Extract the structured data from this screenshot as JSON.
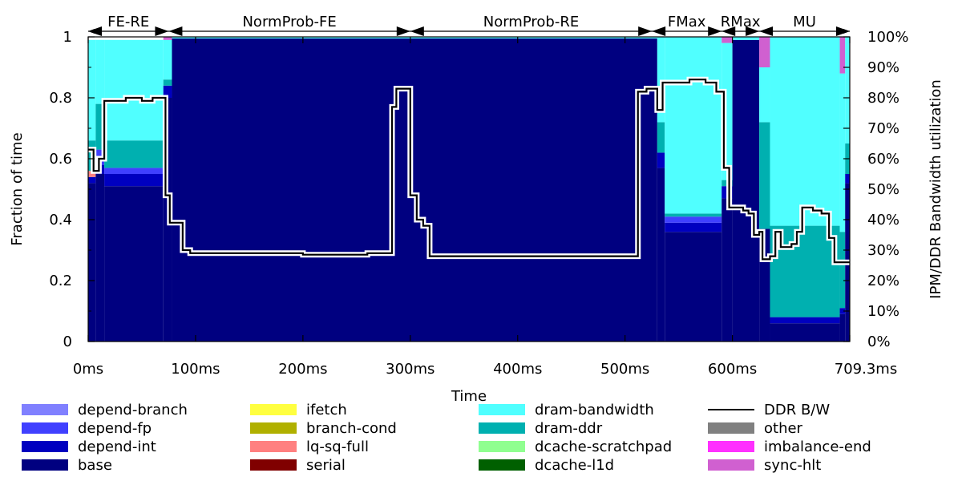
{
  "chart_data": {
    "type": "area",
    "xlabel": "Time",
    "ylabel": "Fraction of time",
    "y2label": "IPM/DDR Bandwidth utilization",
    "x_ticks": [
      "0ms",
      "100ms",
      "200ms",
      "300ms",
      "400ms",
      "500ms",
      "600ms",
      "709.3ms"
    ],
    "x_tick_values": [
      0,
      100,
      200,
      300,
      400,
      500,
      600,
      709.3
    ],
    "xlim": [
      0,
      709.3
    ],
    "y_ticks": [
      "0",
      "0.2",
      "0.4",
      "0.6",
      "0.8",
      "1"
    ],
    "y2_ticks": [
      "0%",
      "10%",
      "20%",
      "30%",
      "40%",
      "50%",
      "60%",
      "70%",
      "80%",
      "90%",
      "100%"
    ],
    "ylim": [
      0,
      1
    ],
    "phases": [
      {
        "label": "FE-RE",
        "start": 0,
        "end": 75
      },
      {
        "label": "NormProb-FE",
        "start": 75,
        "end": 300
      },
      {
        "label": "NormProb-RE",
        "start": 300,
        "end": 525
      },
      {
        "label": "FMax",
        "start": 525,
        "end": 590
      },
      {
        "label": "RMax",
        "start": 590,
        "end": 625
      },
      {
        "label": "MU",
        "start": 625,
        "end": 709.3
      }
    ],
    "series": [
      {
        "name": "depend-branch",
        "color": "#8080ff"
      },
      {
        "name": "depend-fp",
        "color": "#4040ff"
      },
      {
        "name": "depend-int",
        "color": "#0000c0"
      },
      {
        "name": "base",
        "color": "#000080"
      },
      {
        "name": "ifetch",
        "color": "#ffff40"
      },
      {
        "name": "branch-cond",
        "color": "#b0b000"
      },
      {
        "name": "lq-sq-full",
        "color": "#ff8080"
      },
      {
        "name": "serial",
        "color": "#800000"
      },
      {
        "name": "dram-bandwidth",
        "color": "#50ffff"
      },
      {
        "name": "dram-ddr",
        "color": "#00b0b0"
      },
      {
        "name": "dcache-scratchpad",
        "color": "#90ff90"
      },
      {
        "name": "dcache-l1d",
        "color": "#006000"
      },
      {
        "name": "DDR B/W",
        "color": "#000000",
        "line": true
      },
      {
        "name": "other",
        "color": "#808080"
      },
      {
        "name": "imbalance-end",
        "color": "#ff30ff"
      },
      {
        "name": "sync-hlt",
        "color": "#d060d0"
      }
    ],
    "stack_segments": [
      {
        "x0": 0,
        "x1": 7,
        "base": 0.52,
        "depend-int": 0.02,
        "lq-sq-full": 0.02,
        "dram-ddr": 0.1,
        "dram-bandwidth": 0.33
      },
      {
        "x0": 7,
        "x1": 15,
        "base": 0.55,
        "depend-int": 0.03,
        "depend-fp": 0.05,
        "dram-ddr": 0.15,
        "dram-bandwidth": 0.21
      },
      {
        "x0": 15,
        "x1": 70,
        "base": 0.51,
        "depend-int": 0.04,
        "depend-fp": 0.02,
        "dram-ddr": 0.09,
        "dram-bandwidth": 0.33
      },
      {
        "x0": 70,
        "x1": 78,
        "base": 0.8,
        "depend-int": 0.04,
        "dram-ddr": 0.02,
        "dram-bandwidth": 0.13,
        "sync-hlt": 0.01
      },
      {
        "x0": 78,
        "x1": 530,
        "base": 0.995,
        "dram-bandwidth": 0.005
      },
      {
        "x0": 530,
        "x1": 537,
        "base": 0.57,
        "depend-int": 0.05,
        "dram-ddr": 0.1,
        "dram-bandwidth": 0.28
      },
      {
        "x0": 537,
        "x1": 590,
        "base": 0.36,
        "depend-int": 0.03,
        "depend-fp": 0.02,
        "dram-ddr": 0.01,
        "dram-bandwidth": 0.58
      },
      {
        "x0": 590,
        "x1": 600,
        "base": 0.47,
        "depend-int": 0.04,
        "dram-ddr": 0.02,
        "dram-bandwidth": 0.45,
        "sync-hlt": 0.02
      },
      {
        "x0": 600,
        "x1": 625,
        "base": 0.99,
        "dram-bandwidth": 0.01
      },
      {
        "x0": 625,
        "x1": 635,
        "base": 0.37,
        "dram-ddr": 0.35,
        "dram-bandwidth": 0.18,
        "sync-hlt": 0.1
      },
      {
        "x0": 635,
        "x1": 700,
        "base": 0.06,
        "depend-int": 0.02,
        "dram-ddr": 0.3,
        "dram-bandwidth": 0.62
      },
      {
        "x0": 700,
        "x1": 705,
        "base": 0.09,
        "depend-int": 0.02,
        "dram-ddr": 0.25,
        "dram-bandwidth": 0.52,
        "sync-hlt": 0.12
      },
      {
        "x0": 705,
        "x1": 709.3,
        "base": 0.52,
        "depend-int": 0.03,
        "dram-ddr": 0.1,
        "dram-bandwidth": 0.35
      }
    ],
    "ddr_bw_percent": [
      [
        0,
        63
      ],
      [
        5,
        56
      ],
      [
        10,
        60
      ],
      [
        15,
        79
      ],
      [
        25,
        79
      ],
      [
        35,
        80
      ],
      [
        50,
        79
      ],
      [
        60,
        80
      ],
      [
        70,
        80
      ],
      [
        72,
        48
      ],
      [
        76,
        39
      ],
      [
        88,
        30
      ],
      [
        95,
        29
      ],
      [
        140,
        29
      ],
      [
        200,
        28.5
      ],
      [
        260,
        29
      ],
      [
        280,
        29
      ],
      [
        283,
        77
      ],
      [
        287,
        83
      ],
      [
        297,
        83
      ],
      [
        300,
        48
      ],
      [
        306,
        40
      ],
      [
        312,
        38
      ],
      [
        318,
        28
      ],
      [
        350,
        28
      ],
      [
        420,
        28
      ],
      [
        500,
        28
      ],
      [
        510,
        28
      ],
      [
        512,
        82
      ],
      [
        520,
        83
      ],
      [
        530,
        76
      ],
      [
        535,
        85
      ],
      [
        545,
        85
      ],
      [
        560,
        86
      ],
      [
        575,
        85
      ],
      [
        585,
        82
      ],
      [
        592,
        57
      ],
      [
        597,
        44
      ],
      [
        610,
        43
      ],
      [
        615,
        42
      ],
      [
        620,
        35
      ],
      [
        625,
        36
      ],
      [
        628,
        27
      ],
      [
        635,
        28
      ],
      [
        640,
        36
      ],
      [
        645,
        31
      ],
      [
        655,
        32
      ],
      [
        660,
        36
      ],
      [
        665,
        44
      ],
      [
        675,
        43
      ],
      [
        683,
        42
      ],
      [
        690,
        34
      ],
      [
        695,
        26
      ],
      [
        709.3,
        26
      ]
    ]
  }
}
